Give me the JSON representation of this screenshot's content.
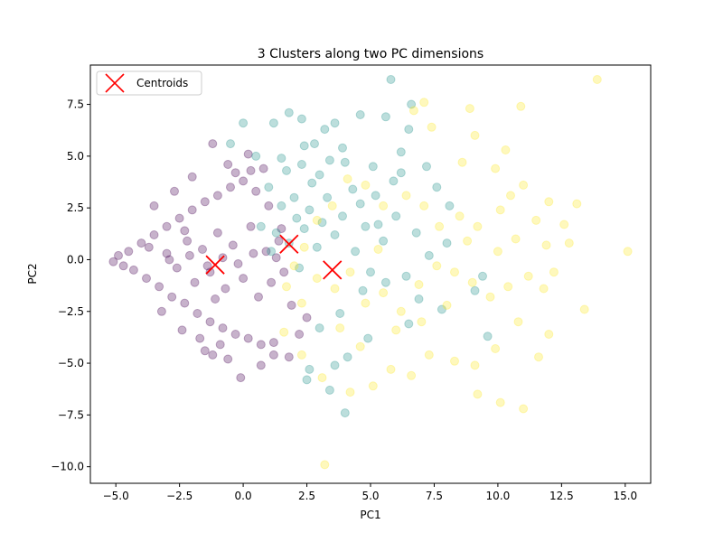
{
  "chart_data": {
    "type": "scatter",
    "title": "3 Clusters along two PC dimensions",
    "xlabel": "PC1",
    "ylabel": "PC2",
    "xlim": [
      -6.0,
      16.0
    ],
    "ylim": [
      -10.8,
      9.4
    ],
    "x_ticks": [
      -5.0,
      -2.5,
      0.0,
      2.5,
      5.0,
      7.5,
      10.0,
      12.5,
      15.0
    ],
    "x_tick_labels": [
      "−5.0",
      "−2.5",
      "0.0",
      "2.5",
      "5.0",
      "7.5",
      "10.0",
      "12.5",
      "15.0"
    ],
    "y_ticks": [
      -10.0,
      -7.5,
      -5.0,
      -2.5,
      0.0,
      2.5,
      5.0,
      7.5
    ],
    "y_tick_labels": [
      "−10.0",
      "−7.5",
      "−5.0",
      "−2.5",
      "0.0",
      "2.5",
      "5.0",
      "7.5"
    ],
    "grid": false,
    "legend": {
      "placement": "upper-left",
      "entries": [
        {
          "label": "Centroids",
          "marker": "x",
          "color": "#ff0000"
        }
      ]
    },
    "series": [
      {
        "color": "#440154",
        "alpha": 0.3,
        "points": [
          [
            -5.1,
            -0.1
          ],
          [
            -4.9,
            0.2
          ],
          [
            -4.7,
            -0.3
          ],
          [
            -4.5,
            0.4
          ],
          [
            -4.3,
            -0.5
          ],
          [
            -4.0,
            0.8
          ],
          [
            -3.8,
            -0.9
          ],
          [
            -3.5,
            1.2
          ],
          [
            -3.3,
            -1.3
          ],
          [
            -3.0,
            1.6
          ],
          [
            -2.8,
            -1.8
          ],
          [
            -2.5,
            2.0
          ],
          [
            -2.3,
            -2.1
          ],
          [
            -2.0,
            2.4
          ],
          [
            -1.8,
            -2.6
          ],
          [
            -1.5,
            2.8
          ],
          [
            -1.3,
            -3.0
          ],
          [
            -1.0,
            3.1
          ],
          [
            -0.8,
            -3.3
          ],
          [
            -0.5,
            3.5
          ],
          [
            -0.3,
            -3.6
          ],
          [
            0.0,
            3.8
          ],
          [
            0.2,
            -3.8
          ],
          [
            0.5,
            3.3
          ],
          [
            0.7,
            -4.1
          ],
          [
            1.0,
            2.6
          ],
          [
            1.2,
            -4.0
          ],
          [
            1.5,
            1.5
          ],
          [
            1.8,
            -4.7
          ],
          [
            -1.5,
            -4.4
          ],
          [
            -1.2,
            -4.6
          ],
          [
            -0.6,
            -4.8
          ],
          [
            -0.1,
            -5.7
          ],
          [
            0.7,
            -5.1
          ],
          [
            1.2,
            -4.6
          ],
          [
            -3.0,
            0.3
          ],
          [
            -2.6,
            -0.4
          ],
          [
            -2.2,
            0.9
          ],
          [
            -1.9,
            -1.1
          ],
          [
            -1.6,
            0.5
          ],
          [
            -1.3,
            -0.6
          ],
          [
            -1.0,
            1.3
          ],
          [
            -0.7,
            -1.4
          ],
          [
            -0.4,
            0.7
          ],
          [
            0.0,
            -0.9
          ],
          [
            0.3,
            1.6
          ],
          [
            0.6,
            -1.8
          ],
          [
            0.9,
            0.4
          ],
          [
            1.1,
            -1.1
          ],
          [
            -2.0,
            4.0
          ],
          [
            -1.2,
            5.6
          ],
          [
            -0.6,
            4.6
          ],
          [
            -0.3,
            4.2
          ],
          [
            0.3,
            4.3
          ],
          [
            -3.5,
            2.6
          ],
          [
            -3.2,
            -2.5
          ],
          [
            -2.7,
            3.3
          ],
          [
            -2.4,
            -3.4
          ],
          [
            -1.7,
            -3.8
          ],
          [
            -0.9,
            -4.1
          ],
          [
            -2.9,
            0.0
          ],
          [
            -2.1,
            0.2
          ],
          [
            -1.4,
            -0.3
          ],
          [
            -0.8,
            0.1
          ],
          [
            -0.2,
            -0.2
          ],
          [
            0.4,
            0.3
          ],
          [
            1.3,
            0.1
          ],
          [
            1.6,
            -0.6
          ],
          [
            1.4,
            0.9
          ],
          [
            1.9,
            -2.2
          ],
          [
            2.2,
            -3.6
          ],
          [
            2.5,
            -2.8
          ],
          [
            0.8,
            4.4
          ],
          [
            0.2,
            5.1
          ],
          [
            -1.1,
            -1.9
          ],
          [
            -2.3,
            1.4
          ],
          [
            -3.7,
            0.6
          ]
        ]
      },
      {
        "color": "#21918c",
        "alpha": 0.3,
        "points": [
          [
            5.8,
            8.7
          ],
          [
            6.6,
            7.5
          ],
          [
            4.6,
            7.0
          ],
          [
            5.6,
            6.9
          ],
          [
            6.5,
            6.3
          ],
          [
            6.2,
            5.2
          ],
          [
            1.8,
            7.1
          ],
          [
            2.3,
            6.8
          ],
          [
            3.2,
            6.3
          ],
          [
            3.6,
            6.6
          ],
          [
            2.8,
            5.6
          ],
          [
            3.9,
            5.4
          ],
          [
            1.2,
            6.6
          ],
          [
            0.0,
            6.6
          ],
          [
            -0.5,
            5.6
          ],
          [
            0.5,
            5.0
          ],
          [
            1.7,
            4.3
          ],
          [
            2.3,
            4.6
          ],
          [
            3.0,
            4.1
          ],
          [
            4.0,
            4.7
          ],
          [
            5.1,
            4.5
          ],
          [
            6.2,
            4.2
          ],
          [
            7.2,
            4.5
          ],
          [
            7.6,
            3.5
          ],
          [
            8.1,
            2.6
          ],
          [
            1.0,
            3.5
          ],
          [
            1.5,
            2.6
          ],
          [
            2.0,
            3.0
          ],
          [
            2.6,
            2.4
          ],
          [
            3.3,
            3.0
          ],
          [
            3.9,
            2.1
          ],
          [
            4.6,
            2.7
          ],
          [
            5.3,
            1.7
          ],
          [
            6.0,
            2.1
          ],
          [
            0.7,
            1.6
          ],
          [
            1.3,
            1.3
          ],
          [
            1.8,
            0.8
          ],
          [
            2.4,
            1.5
          ],
          [
            2.9,
            0.6
          ],
          [
            3.6,
            1.2
          ],
          [
            4.4,
            0.4
          ],
          [
            5.0,
            -0.6
          ],
          [
            5.6,
            -1.1
          ],
          [
            6.4,
            -0.8
          ],
          [
            6.9,
            -1.9
          ],
          [
            9.1,
            -1.5
          ],
          [
            9.4,
            -0.8
          ],
          [
            7.8,
            -2.4
          ],
          [
            6.5,
            -3.1
          ],
          [
            4.9,
            -3.8
          ],
          [
            4.1,
            -4.7
          ],
          [
            3.6,
            -5.1
          ],
          [
            2.6,
            -5.3
          ],
          [
            2.5,
            -5.8
          ],
          [
            3.4,
            -6.3
          ],
          [
            4.0,
            -7.4
          ],
          [
            9.6,
            -3.7
          ],
          [
            4.8,
            1.6
          ],
          [
            5.5,
            0.9
          ],
          [
            2.1,
            2.0
          ],
          [
            2.7,
            3.7
          ],
          [
            3.1,
            1.8
          ],
          [
            4.3,
            3.4
          ],
          [
            5.2,
            3.1
          ],
          [
            5.9,
            3.8
          ],
          [
            1.5,
            4.9
          ],
          [
            2.4,
            5.5
          ],
          [
            3.4,
            4.8
          ],
          [
            1.1,
            0.4
          ],
          [
            2.2,
            -0.4
          ],
          [
            6.8,
            1.3
          ],
          [
            7.3,
            0.2
          ],
          [
            8.0,
            0.8
          ],
          [
            4.7,
            -1.5
          ],
          [
            3.8,
            -2.6
          ],
          [
            3.0,
            -3.3
          ]
        ]
      },
      {
        "color": "#fde725",
        "alpha": 0.3,
        "points": [
          [
            13.9,
            8.7
          ],
          [
            7.1,
            7.6
          ],
          [
            6.7,
            7.2
          ],
          [
            8.9,
            7.3
          ],
          [
            10.9,
            7.4
          ],
          [
            7.4,
            6.4
          ],
          [
            9.1,
            6.0
          ],
          [
            10.3,
            5.3
          ],
          [
            8.6,
            4.7
          ],
          [
            9.9,
            4.4
          ],
          [
            11.0,
            3.6
          ],
          [
            10.5,
            3.1
          ],
          [
            12.0,
            2.8
          ],
          [
            13.1,
            2.7
          ],
          [
            10.1,
            2.4
          ],
          [
            11.5,
            1.9
          ],
          [
            12.6,
            1.7
          ],
          [
            10.7,
            1.0
          ],
          [
            11.9,
            0.7
          ],
          [
            12.8,
            0.8
          ],
          [
            15.1,
            0.4
          ],
          [
            10.0,
            0.4
          ],
          [
            9.2,
            1.6
          ],
          [
            8.5,
            2.1
          ],
          [
            8.8,
            0.9
          ],
          [
            7.7,
            1.6
          ],
          [
            7.1,
            2.6
          ],
          [
            6.4,
            3.1
          ],
          [
            5.5,
            2.6
          ],
          [
            4.8,
            3.6
          ],
          [
            4.1,
            3.9
          ],
          [
            3.5,
            2.6
          ],
          [
            2.9,
            1.9
          ],
          [
            2.4,
            0.6
          ],
          [
            2.0,
            -0.3
          ],
          [
            1.7,
            -1.3
          ],
          [
            2.3,
            -2.1
          ],
          [
            2.9,
            -0.9
          ],
          [
            3.6,
            -1.4
          ],
          [
            4.2,
            -0.6
          ],
          [
            4.8,
            -2.1
          ],
          [
            5.5,
            -1.6
          ],
          [
            6.2,
            -2.5
          ],
          [
            6.9,
            -1.2
          ],
          [
            7.6,
            -0.3
          ],
          [
            8.3,
            -0.6
          ],
          [
            9.0,
            -1.1
          ],
          [
            9.7,
            -1.8
          ],
          [
            10.4,
            -1.3
          ],
          [
            11.2,
            -0.8
          ],
          [
            11.8,
            -1.4
          ],
          [
            12.2,
            -0.6
          ],
          [
            11.6,
            -4.7
          ],
          [
            12.0,
            -3.6
          ],
          [
            13.4,
            -2.4
          ],
          [
            10.8,
            -3.0
          ],
          [
            9.9,
            -4.3
          ],
          [
            9.1,
            -5.1
          ],
          [
            8.3,
            -4.9
          ],
          [
            7.3,
            -4.6
          ],
          [
            6.6,
            -5.6
          ],
          [
            5.8,
            -5.3
          ],
          [
            5.1,
            -6.1
          ],
          [
            4.2,
            -6.4
          ],
          [
            3.1,
            -5.7
          ],
          [
            2.3,
            -4.6
          ],
          [
            1.6,
            -3.5
          ],
          [
            9.2,
            -6.5
          ],
          [
            10.1,
            -6.9
          ],
          [
            11.0,
            -7.2
          ],
          [
            3.2,
            -9.9
          ],
          [
            6.0,
            -3.4
          ],
          [
            7.0,
            -3.0
          ],
          [
            8.0,
            -2.2
          ],
          [
            4.6,
            -4.2
          ],
          [
            3.8,
            -3.3
          ],
          [
            5.3,
            0.5
          ]
        ]
      }
    ],
    "centroids": [
      {
        "x": -1.1,
        "y": -0.25
      },
      {
        "x": 1.8,
        "y": 0.75
      },
      {
        "x": 3.5,
        "y": -0.5
      }
    ]
  }
}
